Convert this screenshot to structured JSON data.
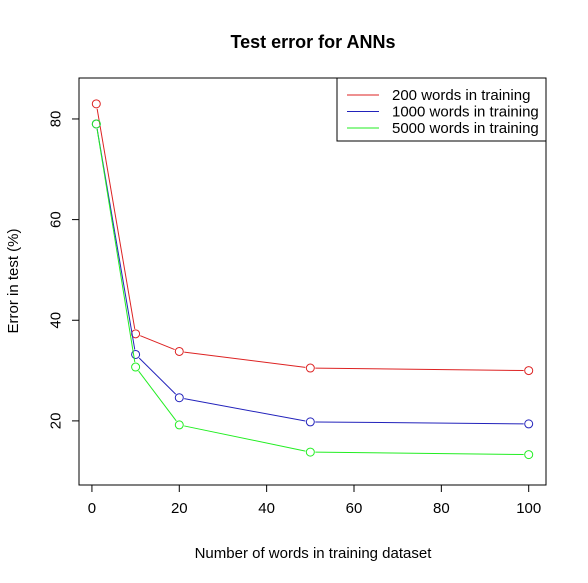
{
  "chart_data": {
    "type": "line",
    "title": "Test error for ANNs",
    "xlabel": "Number of words in training dataset",
    "ylabel": "Error in test (%)",
    "x": [
      1,
      10,
      20,
      50,
      100
    ],
    "xlim": [
      -2.96,
      103.96
    ],
    "ylim": [
      7.26,
      88.14
    ],
    "xticks": [
      0,
      20,
      40,
      60,
      80,
      100
    ],
    "yticks": [
      20,
      40,
      60,
      80
    ],
    "legend_position": "top-right",
    "grid": false,
    "series": [
      {
        "name": "200 words in training",
        "color": "#dd2222",
        "values": [
          83.0,
          37.3,
          33.8,
          30.5,
          30.0
        ]
      },
      {
        "name": "1000 words in training",
        "color": "#2222bb",
        "values": [
          79.0,
          33.2,
          24.6,
          19.8,
          19.4
        ]
      },
      {
        "name": "5000 words in training",
        "color": "#22ee22",
        "values": [
          79.0,
          30.7,
          19.2,
          13.8,
          13.3
        ]
      }
    ]
  }
}
